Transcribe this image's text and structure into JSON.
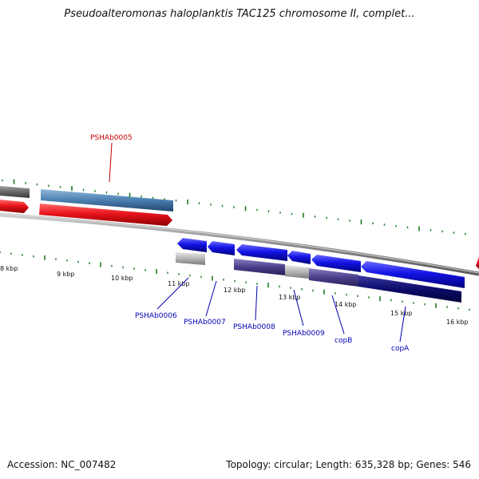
{
  "title": "Pseudoalteromonas haloplanktis TAC125 chromosome II, complet...",
  "footer": {
    "accession": "Accession: NC_007482",
    "summary": "Topology: circular; Length: 635,328 bp; Genes: 546"
  },
  "colors": {
    "forward_cds": "#e8141c",
    "forward_locus": "#4a7fb0",
    "reverse_cds": "#1414e6",
    "reverse_locus": "#4a3f8a",
    "forward_label": "#c80000",
    "reverse_label": "#0000b4",
    "backbone": "#8c8c8c",
    "tick": "#1f7a1f",
    "gray_feature": "#b4b4b4"
  },
  "ticks": [
    "8 kbp",
    "9 kbp",
    "10 kbp",
    "11 kbp",
    "12 kbp",
    "13 kbp",
    "14 kbp",
    "15 kbp",
    "16 kbp"
  ],
  "genes": [
    {
      "label": "PSHAb0005",
      "strand": "+",
      "icon": "forward-arrow"
    },
    {
      "label": "PSHAb0006",
      "strand": "-",
      "icon": "reverse-arrow"
    },
    {
      "label": "PSHAb0007",
      "strand": "-",
      "icon": "reverse-arrow"
    },
    {
      "label": "PSHAb0008",
      "strand": "-",
      "icon": "reverse-arrow"
    },
    {
      "label": "PSHAb0009",
      "strand": "-",
      "icon": "reverse-arrow"
    },
    {
      "label": "copB",
      "strand": "-",
      "icon": "reverse-arrow"
    },
    {
      "label": "copA",
      "strand": "-",
      "icon": "reverse-arrow"
    }
  ]
}
